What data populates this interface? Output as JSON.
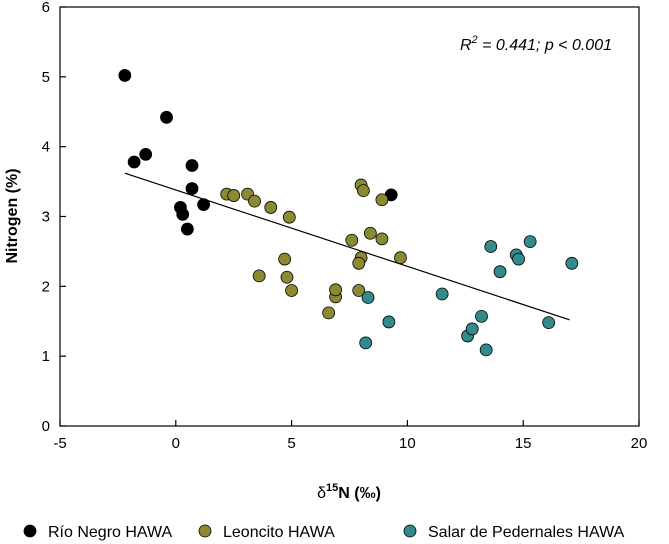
{
  "chart_data": {
    "type": "scatter",
    "title": "",
    "xlabel_symbol": "δ",
    "xlabel_sup": "15",
    "xlabel_rest": "N (‰)",
    "ylabel": "Nitrogen (%)",
    "xlim": [
      -5,
      20
    ],
    "ylim": [
      0,
      6
    ],
    "xticks": [
      -5,
      0,
      5,
      10,
      15,
      20
    ],
    "yticks": [
      0,
      1,
      2,
      3,
      4,
      5,
      6
    ],
    "grid": false,
    "annotation": {
      "r_symbol": "R",
      "r_sup": "2",
      "rest": " = 0.441; p < 0.001",
      "placement": "top-right"
    },
    "regression_line": {
      "x": [
        -2.2,
        17
      ],
      "y": [
        3.62,
        1.52
      ]
    },
    "legend_placement": "bottom",
    "series": [
      {
        "name": "Río Negro HAWA",
        "color": "#000000",
        "points": [
          {
            "x": -2.2,
            "y": 5.02
          },
          {
            "x": -0.4,
            "y": 4.42
          },
          {
            "x": -1.3,
            "y": 3.89
          },
          {
            "x": -1.8,
            "y": 3.78
          },
          {
            "x": 0.7,
            "y": 3.73
          },
          {
            "x": 0.7,
            "y": 3.4
          },
          {
            "x": 0.2,
            "y": 3.13
          },
          {
            "x": 0.3,
            "y": 3.03
          },
          {
            "x": 1.2,
            "y": 3.17
          },
          {
            "x": 0.5,
            "y": 2.82
          },
          {
            "x": 9.3,
            "y": 3.31
          }
        ]
      },
      {
        "name": "Leoncito HAWA",
        "color": "#8b8a33",
        "points": [
          {
            "x": 2.2,
            "y": 3.32
          },
          {
            "x": 2.5,
            "y": 3.3
          },
          {
            "x": 3.1,
            "y": 3.32
          },
          {
            "x": 3.4,
            "y": 3.22
          },
          {
            "x": 4.1,
            "y": 3.13
          },
          {
            "x": 4.9,
            "y": 2.99
          },
          {
            "x": 3.6,
            "y": 2.15
          },
          {
            "x": 4.7,
            "y": 2.39
          },
          {
            "x": 4.8,
            "y": 2.13
          },
          {
            "x": 5.0,
            "y": 1.94
          },
          {
            "x": 6.6,
            "y": 1.62
          },
          {
            "x": 6.9,
            "y": 1.85
          },
          {
            "x": 6.9,
            "y": 1.95
          },
          {
            "x": 7.6,
            "y": 2.66
          },
          {
            "x": 8.0,
            "y": 3.45
          },
          {
            "x": 8.1,
            "y": 3.37
          },
          {
            "x": 8.0,
            "y": 2.41
          },
          {
            "x": 7.9,
            "y": 2.33
          },
          {
            "x": 7.9,
            "y": 1.94
          },
          {
            "x": 8.4,
            "y": 2.76
          },
          {
            "x": 8.9,
            "y": 3.24
          },
          {
            "x": 8.9,
            "y": 2.68
          },
          {
            "x": 9.7,
            "y": 2.41
          }
        ]
      },
      {
        "name": "Salar de Pedernales HAWA",
        "color": "#338a8a",
        "points": [
          {
            "x": 8.2,
            "y": 1.19
          },
          {
            "x": 8.3,
            "y": 1.84
          },
          {
            "x": 9.2,
            "y": 1.49
          },
          {
            "x": 11.5,
            "y": 1.89
          },
          {
            "x": 12.6,
            "y": 1.29
          },
          {
            "x": 12.8,
            "y": 1.39
          },
          {
            "x": 13.2,
            "y": 1.57
          },
          {
            "x": 13.4,
            "y": 1.09
          },
          {
            "x": 13.6,
            "y": 2.57
          },
          {
            "x": 14.0,
            "y": 2.21
          },
          {
            "x": 14.7,
            "y": 2.45
          },
          {
            "x": 14.8,
            "y": 2.39
          },
          {
            "x": 15.3,
            "y": 2.64
          },
          {
            "x": 16.1,
            "y": 1.48
          },
          {
            "x": 17.1,
            "y": 2.33
          }
        ]
      }
    ]
  }
}
